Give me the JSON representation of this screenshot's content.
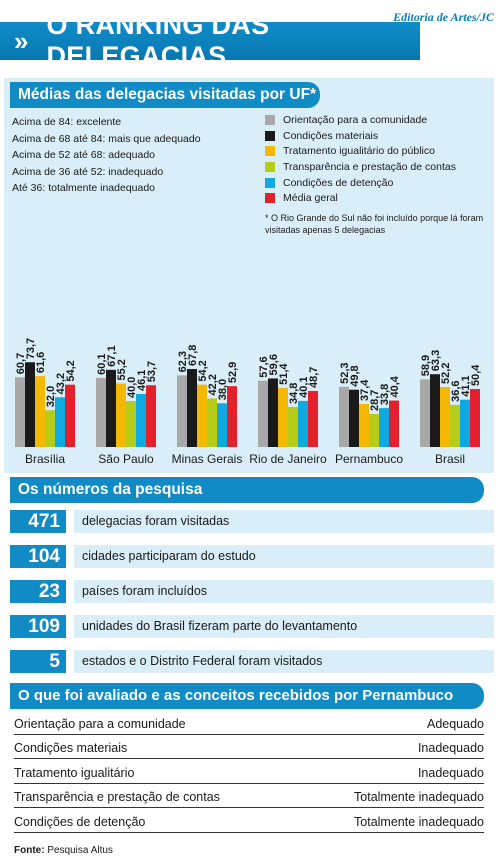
{
  "header": {
    "credit": "Editoria de Artes/JC",
    "chevrons": "»",
    "title": "O RANKING DAS DELEGACIAS"
  },
  "scale_section": {
    "heading": "Médias das delegacias visitadas por UF*",
    "scale": [
      "Acima de 84: excelente",
      "Acima de 68 até 84: mais que adequado",
      "Acima de 52 até 68: adequado",
      "Acima de 36 até 52: inadequado",
      "Até 36: totalmente inadequado"
    ],
    "note": "* O Rio Grande do Sul não foi incluído porque lá foram visitadas apenas 5 delegacias"
  },
  "colors": {
    "accent": "#118bc6",
    "panel_bg": "#d9eef8",
    "series": [
      "#a8a8a8",
      "#1a1a1a",
      "#f5b800",
      "#b5cc18",
      "#10a8e0",
      "#e3212d"
    ]
  },
  "chart_data": {
    "type": "bar",
    "categories": [
      "Brasília",
      "São Paulo",
      "Minas Gerais",
      "Rio de Janeiro",
      "Pernambuco",
      "Brasil"
    ],
    "series": [
      {
        "name": "Orientação para a comunidade",
        "values": [
          60.7,
          60.1,
          62.3,
          57.6,
          52.3,
          58.9
        ]
      },
      {
        "name": "Condições materiais",
        "values": [
          73.7,
          67.1,
          67.8,
          59.6,
          49.8,
          63.3
        ]
      },
      {
        "name": "Tratamento igualitário do público",
        "values": [
          61.6,
          55.2,
          54.2,
          51.4,
          37.4,
          52.2
        ]
      },
      {
        "name": "Transparência e prestação de contas",
        "values": [
          32.0,
          40.0,
          42.2,
          34.8,
          28.7,
          36.6
        ]
      },
      {
        "name": "Condições de detenção",
        "values": [
          43.2,
          46.1,
          38.0,
          40.1,
          33.8,
          41.1
        ]
      },
      {
        "name": "Média geral",
        "values": [
          54.2,
          53.7,
          52.9,
          48.7,
          40.4,
          50.4
        ]
      }
    ],
    "labels": [
      [
        "60,7",
        "73,7",
        "61,6",
        "32,0",
        "43,2",
        "54,2"
      ],
      [
        "60,1",
        "67,1",
        "55,2",
        "40,0",
        "46,1",
        "53,7"
      ],
      [
        "62,3",
        "67,8",
        "54,2",
        "42,2",
        "38,0",
        "52,9"
      ],
      [
        "57,6",
        "59,6",
        "51,4",
        "34,8",
        "40,1",
        "48,7"
      ],
      [
        "52,3",
        "49,8",
        "37,4",
        "28,7",
        "33,8",
        "40,4"
      ],
      [
        "58,9",
        "63,3",
        "52,2",
        "36,6",
        "41,1",
        "50,4"
      ]
    ],
    "ylim": [
      0,
      100
    ],
    "xlabel": "",
    "ylabel": "",
    "legend": "top-right"
  },
  "stats": {
    "heading": "Os números da pesquisa",
    "rows": [
      {
        "num": "471",
        "text": "delegacias foram visitadas"
      },
      {
        "num": "104",
        "text": "cidades participaram do estudo"
      },
      {
        "num": "23",
        "text": "países foram incluídos"
      },
      {
        "num": "109",
        "text": "unidades do Brasil fizeram parte do levantamento"
      },
      {
        "num": "5",
        "text": "estados e o Distrito Federal foram visitados"
      }
    ]
  },
  "evaluation": {
    "heading": "O que foi avaliado e as conceitos recebidos por Pernambuco",
    "rows": [
      {
        "item": "Orientação para a comunidade",
        "grade": "Adequado"
      },
      {
        "item": "Condições materiais",
        "grade": "Inadequado"
      },
      {
        "item": "Tratamento igualitário",
        "grade": "Inadequado"
      },
      {
        "item": "Transparência e prestação de contas",
        "grade": "Totalmente inadequado"
      },
      {
        "item": "Condições de detenção",
        "grade": "Totalmente inadequado"
      }
    ]
  },
  "source": {
    "label": "Fonte:",
    "text": "Pesquisa Altus"
  }
}
